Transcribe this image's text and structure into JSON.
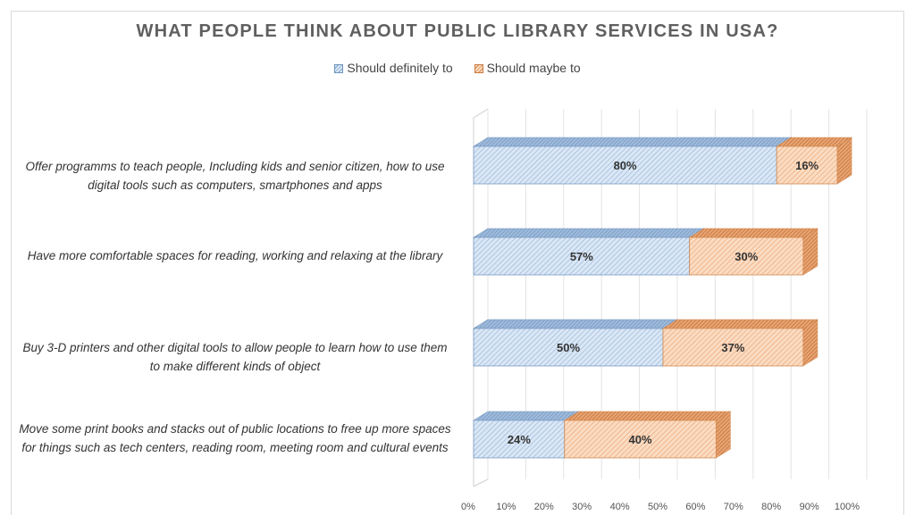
{
  "chart_data": {
    "type": "bar",
    "orientation": "horizontal",
    "stacked": true,
    "style": "3d",
    "title": "WHAT PEOPLE THINK ABOUT PUBLIC LIBRARY SERVICES IN USA?",
    "categories": [
      "Offer programms to teach people, Including kids and senior citizen, how to use digital tools such as computers, smartphones and apps",
      "Have more comfortable spaces for reading, working and relaxing at the library",
      "Buy 3-D printers and other digital tools to allow people to learn how to use them to make different kinds of object",
      "Move some print books and stacks out of public locations to free up more spaces for things such as tech centers, reading room, meeting room and cultural events"
    ],
    "series": [
      {
        "name": "Should definitely to",
        "values": [
          80,
          57,
          50,
          24
        ],
        "labels": [
          "80%",
          "57%",
          "50%",
          "24%"
        ],
        "color": "#a9c4e4"
      },
      {
        "name": "Should maybe to",
        "values": [
          16,
          30,
          37,
          40
        ],
        "labels": [
          "16%",
          "30%",
          "37%",
          "40%"
        ],
        "color": "#f4b183"
      }
    ],
    "xlim": [
      0,
      100
    ],
    "xticks": [
      "0%",
      "10%",
      "20%",
      "30%",
      "40%",
      "50%",
      "60%",
      "70%",
      "80%",
      "90%",
      "100%"
    ],
    "grid": true,
    "legend": "top"
  }
}
